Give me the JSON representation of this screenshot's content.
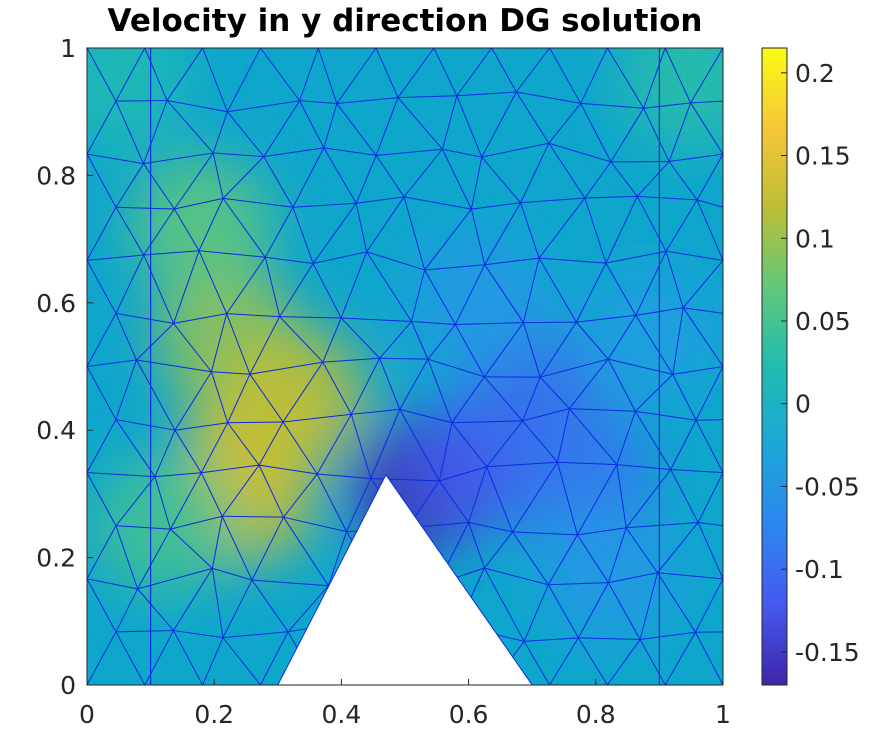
{
  "chart_data": {
    "type": "heatmap",
    "title": "Velocity in y direction DG solution",
    "xlabel": "",
    "ylabel": "",
    "xlim": [
      0,
      1
    ],
    "ylim": [
      0,
      1
    ],
    "x_ticks": [
      "0",
      "0.2",
      "0.4",
      "0.6",
      "0.8",
      "1"
    ],
    "x_tick_values": [
      0,
      0.2,
      0.4,
      0.6,
      0.8,
      1
    ],
    "y_ticks": [
      "0",
      "0.2",
      "0.4",
      "0.6",
      "0.8",
      "1"
    ],
    "y_tick_values": [
      0,
      0.2,
      0.4,
      0.6,
      0.8,
      1
    ],
    "colorbar": {
      "limits": [
        -0.17,
        0.215
      ],
      "ticks": [
        "0.2",
        "0.15",
        "0.1",
        "0.05",
        "0",
        "-0.05",
        "-0.1",
        "-0.15"
      ],
      "tick_values": [
        0.2,
        0.15,
        0.1,
        0.05,
        0,
        -0.05,
        -0.1,
        -0.15
      ],
      "colormap": "parula"
    },
    "obstacle_triangle": [
      [
        0.3,
        0
      ],
      [
        0.7,
        0
      ],
      [
        0.47,
        0.33
      ]
    ],
    "vertical_mesh_lines": [
      0.1,
      0.9
    ],
    "field_blobs": [
      {
        "x": 0.27,
        "y": 0.4,
        "value": 0.14
      },
      {
        "x": 0.25,
        "y": 0.3,
        "value": 0.13
      },
      {
        "x": 0.22,
        "y": 0.55,
        "value": 0.1
      },
      {
        "x": 0.33,
        "y": 0.45,
        "value": 0.12
      },
      {
        "x": 0.18,
        "y": 0.72,
        "value": 0.07
      },
      {
        "x": 0.12,
        "y": 0.25,
        "value": 0.05
      },
      {
        "x": 0.52,
        "y": 0.31,
        "value": -0.16
      },
      {
        "x": 0.62,
        "y": 0.35,
        "value": -0.12
      },
      {
        "x": 0.7,
        "y": 0.45,
        "value": -0.1
      },
      {
        "x": 0.78,
        "y": 0.33,
        "value": -0.09
      },
      {
        "x": 0.62,
        "y": 0.6,
        "value": -0.05
      },
      {
        "x": 0.82,
        "y": 0.18,
        "value": -0.05
      },
      {
        "x": 0.88,
        "y": 0.55,
        "value": -0.04
      },
      {
        "x": 0.05,
        "y": 0.95,
        "value": 0.02
      },
      {
        "x": 0.95,
        "y": 0.95,
        "value": 0.03
      }
    ],
    "grid": false,
    "colors": {
      "mesh": "#0b2be0",
      "obstacle": "#ffffff",
      "background": "#0fa6cc"
    }
  }
}
